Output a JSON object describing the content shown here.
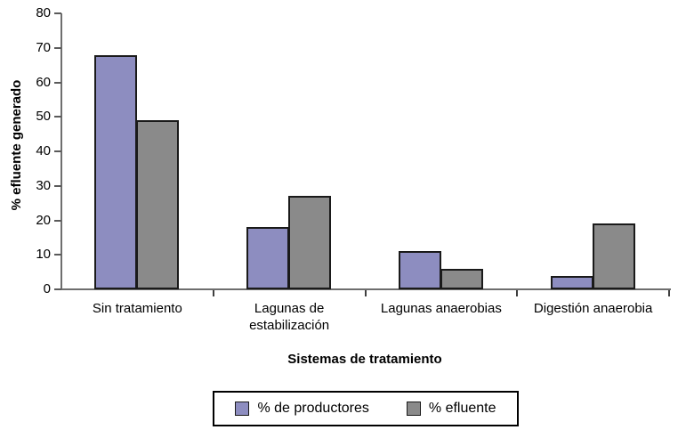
{
  "chart_data": {
    "type": "bar",
    "categories": [
      "Sin tratamiento",
      "Lagunas de\nestabilización",
      "Lagunas anaerobias",
      "Digestión anaerobia"
    ],
    "series": [
      {
        "name": "% de productores",
        "color": "#8D8DC0",
        "values": [
          68,
          18,
          11,
          4
        ]
      },
      {
        "name": "% efluente",
        "color": "#8A8A8A",
        "values": [
          49,
          27,
          6,
          19
        ]
      }
    ],
    "title": "",
    "xlabel": "Sistemas de tratamiento",
    "ylabel": "% efluente generado",
    "ylim": [
      0,
      80
    ],
    "yticks": [
      0,
      10,
      20,
      30,
      40,
      50,
      60,
      70,
      80
    ],
    "grid": false,
    "legend_position": "bottom"
  },
  "colors": {
    "bar_border": "#1a1a1a",
    "axis_line": "#6e6e6e",
    "background": "#ffffff",
    "text": "#000000"
  }
}
